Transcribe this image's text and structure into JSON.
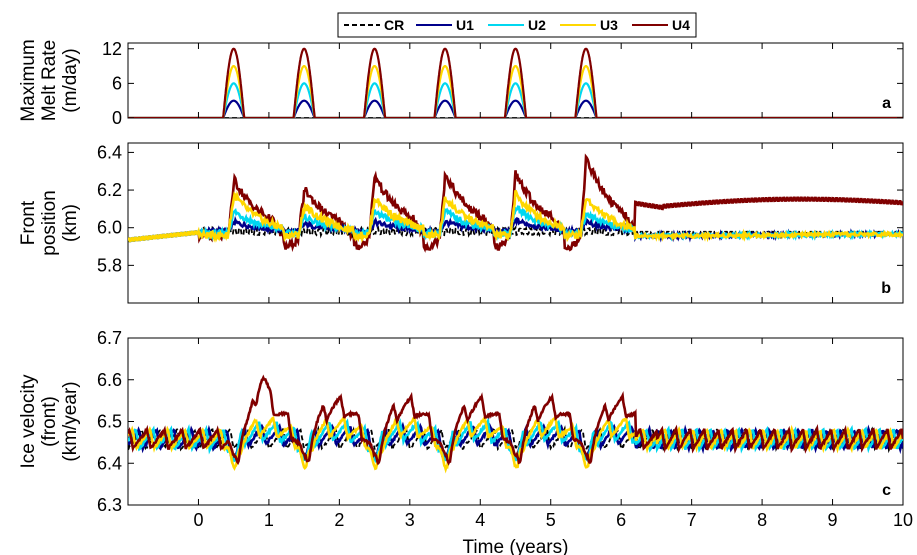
{
  "chart_data": [
    {
      "type": "line",
      "id": "a",
      "panel_label": "a",
      "ylabel_lines": [
        "Maximum",
        "Melt Rate",
        "(m/day)"
      ],
      "xlim": [
        -1,
        10
      ],
      "ylim": [
        0,
        13
      ],
      "yticks": [
        0,
        6,
        12
      ],
      "xticks": [
        0,
        1,
        2,
        3,
        4,
        5,
        6,
        7,
        8,
        9,
        10
      ],
      "pulse_centers": [
        0.5,
        1.5,
        2.5,
        3.5,
        4.5,
        5.5
      ],
      "pulse_halfwidth": 0.15,
      "base_window": [
        0,
        6
      ],
      "series": [
        {
          "name": "CR",
          "color": "#000000",
          "dash": true,
          "peak": 0
        },
        {
          "name": "U1",
          "color": "#00008b",
          "peak": 3
        },
        {
          "name": "U2",
          "color": "#00d7f0",
          "peak": 6
        },
        {
          "name": "U3",
          "color": "#ffd700",
          "peak": 9
        },
        {
          "name": "U4",
          "color": "#800000",
          "peak": 12
        }
      ]
    },
    {
      "type": "line",
      "id": "b",
      "panel_label": "b",
      "ylabel_lines": [
        "Front",
        "position",
        "(km)"
      ],
      "xlim": [
        -1,
        10
      ],
      "ylim": [
        5.6,
        6.45
      ],
      "yticks": [
        5.8,
        6.0,
        6.2,
        6.4
      ],
      "xticks": [
        0,
        1,
        2,
        3,
        4,
        5,
        6,
        7,
        8,
        9,
        10
      ],
      "peak_x": [
        0.5,
        1.5,
        2.5,
        3.5,
        4.5,
        5.5
      ],
      "series": [
        {
          "name": "CR",
          "color": "#000000",
          "dash": true,
          "baseline": 5.98,
          "peaks": [
            0.02,
            0.02,
            0.02,
            0.02,
            0.02,
            0.02
          ]
        },
        {
          "name": "U1",
          "color": "#00008b",
          "baseline": 5.98,
          "peaks": [
            0.05,
            0.04,
            0.05,
            0.05,
            0.06,
            0.05
          ]
        },
        {
          "name": "U2",
          "color": "#00d7f0",
          "baseline": 5.97,
          "peaks": [
            0.12,
            0.09,
            0.12,
            0.12,
            0.14,
            0.11
          ]
        },
        {
          "name": "U3",
          "color": "#ffd700",
          "baseline": 5.96,
          "peaks": [
            0.22,
            0.16,
            0.2,
            0.2,
            0.22,
            0.2
          ]
        },
        {
          "name": "U4",
          "color": "#800000",
          "baseline": 5.96,
          "peaks": [
            0.3,
            0.25,
            0.32,
            0.33,
            0.33,
            0.42
          ],
          "tail": 6.13
        }
      ]
    },
    {
      "type": "line",
      "id": "c",
      "panel_label": "c",
      "ylabel_lines": [
        "Ice velocity",
        "(front)",
        "(km/year)"
      ],
      "xlim": [
        -1,
        10
      ],
      "ylim": [
        6.3,
        6.7
      ],
      "yticks": [
        6.3,
        6.4,
        6.5,
        6.6,
        6.7
      ],
      "xticks": [
        0,
        1,
        2,
        3,
        4,
        5,
        6,
        7,
        8,
        9,
        10
      ],
      "xlabel": "Time (years)",
      "peak_x": [
        0.5,
        1.5,
        2.5,
        3.5,
        4.5,
        5.5
      ],
      "series": [
        {
          "name": "CR",
          "color": "#000000",
          "dash": true,
          "dip": 0.0,
          "bump": 0.0
        },
        {
          "name": "U1",
          "color": "#00008b",
          "dip": 0.03,
          "bump": 0.01
        },
        {
          "name": "U2",
          "color": "#00d7f0",
          "dip": 0.05,
          "bump": 0.02
        },
        {
          "name": "U3",
          "color": "#ffd700",
          "dip": 0.08,
          "bump": 0.03
        },
        {
          "name": "U4",
          "color": "#800000",
          "dip": 0.06,
          "bump": 0.08
        }
      ]
    }
  ],
  "legend": {
    "entries": [
      {
        "label": "CR",
        "color": "#000000",
        "dash": true
      },
      {
        "label": "U1",
        "color": "#00008b",
        "dash": false
      },
      {
        "label": "U2",
        "color": "#00d7f0",
        "dash": false
      },
      {
        "label": "U3",
        "color": "#ffd700",
        "dash": false
      },
      {
        "label": "U4",
        "color": "#800000",
        "dash": false
      }
    ]
  }
}
